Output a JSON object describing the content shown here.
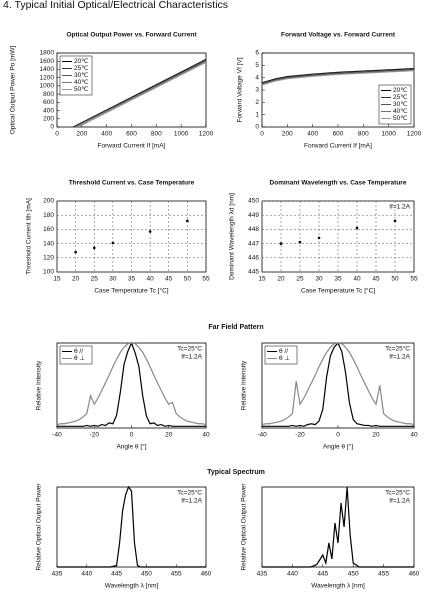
{
  "heading": "4. Typical Initial Optical/Electrical Characteristics",
  "sections": [
    "Far Field Pattern",
    "Typical Spectrum"
  ],
  "chart_data": [
    {
      "type": "line",
      "title": "Optical Output Power vs. Forward Current",
      "x_label": "Forward Current If [mA]",
      "y_label": "Optical Output Power  Po [mW]",
      "xlim": [
        0,
        1200
      ],
      "xticks": [
        0,
        200,
        400,
        600,
        800,
        1000,
        1200
      ],
      "ylim": [
        0,
        1800
      ],
      "yticks": [
        0,
        200,
        400,
        600,
        800,
        1000,
        1200,
        1400,
        1600,
        1800
      ],
      "grid": false,
      "legend": "upper left",
      "series": [
        {
          "name": "20℃",
          "color": "#000000",
          "x": [
            128,
            1200
          ],
          "values": [
            0,
            1650
          ]
        },
        {
          "name": "25℃",
          "color": "#333333",
          "x": [
            133,
            1200
          ],
          "values": [
            0,
            1630
          ]
        },
        {
          "name": "30℃",
          "color": "#555555",
          "x": [
            140,
            1200
          ],
          "values": [
            0,
            1610
          ]
        },
        {
          "name": "40℃",
          "color": "#777777",
          "x": [
            157,
            1200
          ],
          "values": [
            0,
            1590
          ]
        },
        {
          "name": "50℃",
          "color": "#999999",
          "x": [
            172,
            1200
          ],
          "values": [
            0,
            1570
          ]
        }
      ]
    },
    {
      "type": "line",
      "title": "Forward Voltage vs. Forward Current",
      "x_label": "Forward Current If [mA]",
      "y_label": "Forward Voltage  Vf [V]",
      "xlim": [
        0,
        1200
      ],
      "xticks": [
        0,
        200,
        400,
        600,
        800,
        1000,
        1200
      ],
      "ylim": [
        0,
        6
      ],
      "yticks": [
        0,
        1,
        2,
        3,
        4,
        5,
        6
      ],
      "grid": false,
      "legend": "lower right",
      "x": [
        0,
        100,
        200,
        400,
        600,
        800,
        1000,
        1200
      ],
      "series": [
        {
          "name": "20℃",
          "color": "#000000",
          "values": [
            3.6,
            3.9,
            4.1,
            4.3,
            4.45,
            4.55,
            4.65,
            4.75
          ]
        },
        {
          "name": "25℃",
          "color": "#333333",
          "values": [
            3.55,
            3.85,
            4.05,
            4.25,
            4.4,
            4.5,
            4.6,
            4.7
          ]
        },
        {
          "name": "30℃",
          "color": "#555555",
          "values": [
            3.5,
            3.8,
            4.0,
            4.2,
            4.35,
            4.45,
            4.55,
            4.65
          ]
        },
        {
          "name": "40℃",
          "color": "#777777",
          "values": [
            3.45,
            3.75,
            3.95,
            4.15,
            4.3,
            4.4,
            4.5,
            4.6
          ]
        },
        {
          "name": "50℃",
          "color": "#999999",
          "values": [
            3.4,
            3.7,
            3.9,
            4.1,
            4.25,
            4.35,
            4.45,
            4.55
          ]
        }
      ]
    },
    {
      "type": "scatter",
      "title": "Threshold Current vs. Case Temperature",
      "x_label": "Case Temperature  Tc [°C]",
      "y_label": "Threshold Current  Ith [mA]",
      "xlim": [
        15,
        55
      ],
      "xticks": [
        15,
        20,
        25,
        30,
        35,
        40,
        45,
        50,
        55
      ],
      "ylim": [
        100,
        200
      ],
      "yticks": [
        100,
        120,
        140,
        160,
        180,
        200
      ],
      "grid": true,
      "x": [
        20,
        25,
        30,
        40,
        50
      ],
      "values": [
        128,
        134,
        141,
        157,
        172
      ],
      "color": "#000000"
    },
    {
      "type": "scatter",
      "title": "Dominant Wavelength vs. Case Temperature",
      "x_label": "Case Temperature  Tc [°C]",
      "y_label": "Dominant Wavelength λd [nm]",
      "xlim": [
        15,
        55
      ],
      "xticks": [
        15,
        20,
        25,
        30,
        35,
        40,
        45,
        50,
        55
      ],
      "ylim": [
        445,
        450
      ],
      "yticks": [
        445,
        446,
        447,
        448,
        449,
        450
      ],
      "grid": true,
      "annotations": [
        "If=1.2A"
      ],
      "x": [
        20,
        25,
        30,
        40,
        50
      ],
      "values": [
        447.0,
        447.1,
        447.4,
        448.1,
        448.6
      ],
      "color": "#000000"
    },
    {
      "type": "line",
      "x_label": "Angle  θ [°]",
      "y_label": "Relative Intensity",
      "xlim": [
        -40,
        40
      ],
      "xticks": [
        -40,
        -20,
        0,
        20,
        40
      ],
      "ylim": [
        0,
        1
      ],
      "grid": false,
      "legend": "upper left",
      "annotations": [
        "Tc=25°C",
        "If=1.2A"
      ],
      "x": [
        -40,
        -38,
        -36,
        -34,
        -32,
        -30,
        -28,
        -26,
        -24,
        -22,
        -20,
        -18,
        -16,
        -14,
        -12,
        -10,
        -8,
        -6,
        -4,
        -2,
        0,
        2,
        4,
        6,
        8,
        10,
        12,
        14,
        16,
        18,
        20,
        22,
        24,
        26,
        28,
        30,
        32,
        34,
        36,
        38,
        40
      ],
      "series": [
        {
          "name": "θ //",
          "color": "#000000",
          "values": [
            0.02,
            0.02,
            0.02,
            0.02,
            0.02,
            0.02,
            0.02,
            0.02,
            0.03,
            0.02,
            0.03,
            0.02,
            0.04,
            0.03,
            0.06,
            0.05,
            0.15,
            0.42,
            0.75,
            0.9,
            1.0,
            0.88,
            0.72,
            0.38,
            0.14,
            0.05,
            0.06,
            0.03,
            0.04,
            0.02,
            0.03,
            0.02,
            0.02,
            0.02,
            0.02,
            0.02,
            0.02,
            0.02,
            0.02,
            0.02,
            0.02
          ]
        },
        {
          "name": "θ ⊥",
          "color": "#888888",
          "values": [
            0.04,
            0.05,
            0.05,
            0.06,
            0.07,
            0.08,
            0.1,
            0.13,
            0.17,
            0.38,
            0.28,
            0.35,
            0.44,
            0.53,
            0.62,
            0.72,
            0.81,
            0.89,
            0.95,
            0.99,
            1.0,
            0.99,
            0.95,
            0.89,
            0.81,
            0.72,
            0.62,
            0.53,
            0.44,
            0.35,
            0.28,
            0.3,
            0.17,
            0.13,
            0.1,
            0.08,
            0.07,
            0.06,
            0.05,
            0.05,
            0.04
          ]
        }
      ]
    },
    {
      "type": "line",
      "x_label": "Angle  θ [°]",
      "y_label": "Relative Intensity",
      "xlim": [
        -40,
        40
      ],
      "xticks": [
        -40,
        -20,
        0,
        20,
        40
      ],
      "ylim": [
        0,
        1
      ],
      "grid": false,
      "legend": "upper left",
      "annotations": [
        "Tc=25°C",
        "If=1.2A"
      ],
      "x": [
        -40,
        -38,
        -36,
        -34,
        -32,
        -30,
        -28,
        -26,
        -24,
        -22,
        -20,
        -18,
        -16,
        -14,
        -12,
        -10,
        -8,
        -6,
        -4,
        -2,
        0,
        2,
        4,
        6,
        8,
        10,
        12,
        14,
        16,
        18,
        20,
        22,
        24,
        26,
        28,
        30,
        32,
        34,
        36,
        38,
        40
      ],
      "series": [
        {
          "name": "θ //",
          "color": "#000000",
          "values": [
            0.02,
            0.02,
            0.02,
            0.02,
            0.02,
            0.02,
            0.02,
            0.02,
            0.03,
            0.02,
            0.03,
            0.02,
            0.04,
            0.05,
            0.04,
            0.08,
            0.22,
            0.6,
            0.85,
            0.95,
            1.0,
            0.9,
            0.65,
            0.3,
            0.1,
            0.05,
            0.04,
            0.03,
            0.03,
            0.02,
            0.03,
            0.02,
            0.02,
            0.02,
            0.02,
            0.02,
            0.02,
            0.02,
            0.02,
            0.02,
            0.02
          ]
        },
        {
          "name": "θ ⊥",
          "color": "#888888",
          "values": [
            0.04,
            0.05,
            0.05,
            0.06,
            0.07,
            0.08,
            0.1,
            0.13,
            0.17,
            0.55,
            0.28,
            0.35,
            0.44,
            0.53,
            0.62,
            0.72,
            0.81,
            0.89,
            0.95,
            0.99,
            1.0,
            0.99,
            0.95,
            0.89,
            0.81,
            0.72,
            0.62,
            0.53,
            0.44,
            0.35,
            0.28,
            0.5,
            0.17,
            0.13,
            0.1,
            0.08,
            0.07,
            0.06,
            0.05,
            0.05,
            0.04
          ]
        }
      ]
    },
    {
      "type": "line",
      "x_label": "Wavelength λ [nm]",
      "y_label": "Relative Optical Output Power",
      "xlim": [
        435,
        460
      ],
      "xticks": [
        435,
        440,
        445,
        450,
        455,
        460
      ],
      "ylim": [
        0,
        1
      ],
      "grid": false,
      "annotations": [
        "Tc=25°C",
        "If=1.2A"
      ],
      "x": [
        435,
        444,
        445,
        445.5,
        446,
        446.5,
        447,
        447.5,
        448,
        448.5,
        449,
        450,
        460
      ],
      "series": [
        {
          "color": "#000000",
          "values": [
            0,
            0,
            0.02,
            0.3,
            0.7,
            0.9,
            1.0,
            0.95,
            0.3,
            0.02,
            0,
            0,
            0
          ]
        }
      ]
    },
    {
      "type": "line",
      "x_label": "Wavelength λ [nm]",
      "y_label": "Relative Optical Output Power",
      "xlim": [
        435,
        460
      ],
      "xticks": [
        435,
        440,
        445,
        450,
        455,
        460
      ],
      "ylim": [
        0,
        1
      ],
      "grid": false,
      "annotations": [
        "Tc=25°C",
        "If=1.2A"
      ],
      "x": [
        435,
        443,
        444,
        445,
        445.5,
        446,
        446.5,
        447,
        447.5,
        448,
        448.5,
        449,
        449.5,
        450,
        451,
        460
      ],
      "series": [
        {
          "color": "#000000",
          "values": [
            0,
            0,
            0.03,
            0.15,
            0.05,
            0.3,
            0.1,
            0.55,
            0.3,
            0.8,
            0.5,
            1.0,
            0.4,
            0.05,
            0,
            0
          ]
        }
      ]
    }
  ]
}
